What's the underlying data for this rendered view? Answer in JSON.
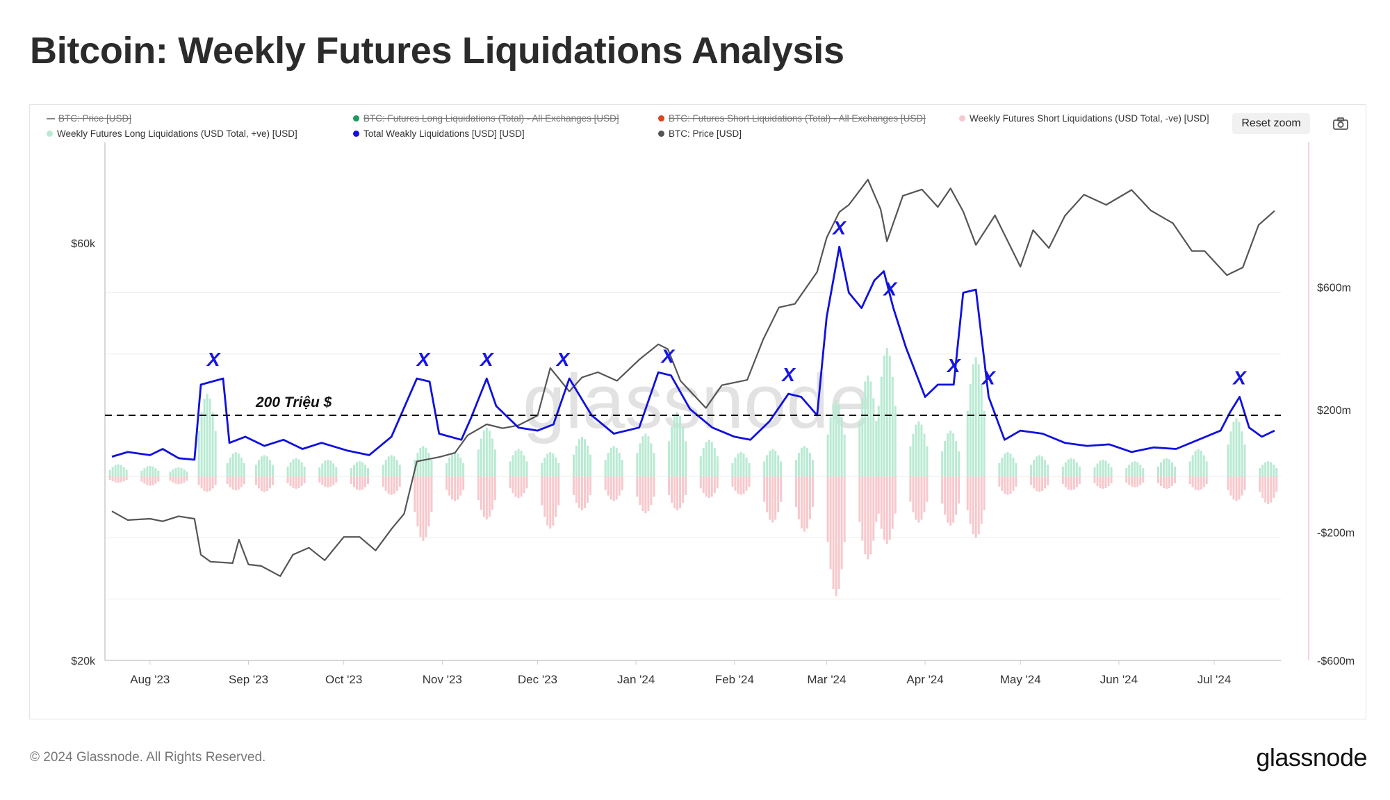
{
  "page": {
    "title": "Bitcoin: Weekly Futures Liquidations Analysis",
    "copyright": "© 2024 Glassnode. All Rights Reserved.",
    "brand": "glassnode",
    "watermark": "glassnode"
  },
  "controls": {
    "reset_zoom_label": "Reset zoom",
    "camera_icon": "camera-icon"
  },
  "legend": [
    {
      "label": "BTC: Price [USD]",
      "color": "#888888",
      "hidden": true,
      "marker": "line"
    },
    {
      "label": "BTC: Futures Long Liquidations (Total) - All Exchanges [USD]",
      "color": "#1a9c5a",
      "hidden": true,
      "marker": "dot"
    },
    {
      "label": "BTC: Futures Short Liquidations (Total) - All Exchanges [USD]",
      "color": "#e0441b",
      "hidden": true,
      "marker": "dot"
    },
    {
      "label": "Weekly Futures Short Liquidations (USD Total, -ve) [USD]",
      "color": "#f7c8cc",
      "hidden": false,
      "marker": "dot"
    },
    {
      "label": "Weekly Futures Long Liquidations (USD Total, +ve) [USD]",
      "color": "#b9ead3",
      "hidden": false,
      "marker": "dot"
    },
    {
      "label": "Total Weakly Liquidations [USD] [USD]",
      "color": "#1010e0",
      "hidden": false,
      "marker": "dot"
    },
    {
      "label": "BTC: Price [USD]",
      "color": "#555555",
      "hidden": false,
      "marker": "dot"
    }
  ],
  "chart_data": {
    "type": "line",
    "annotation_threshold": {
      "label": "200 Triệu $",
      "value": 200000000,
      "style": "dashed"
    },
    "peak_marker_label": "X",
    "x_axis": {
      "ticks": [
        "Aug '23",
        "Sep '23",
        "Oct '23",
        "Nov '23",
        "Dec '23",
        "Jan '24",
        "Feb '24",
        "Mar '24",
        "Apr '24",
        "May '24",
        "Jun '24",
        "Jul '24"
      ],
      "range": [
        "2023-07-20",
        "2024-07-22"
      ]
    },
    "left_axis": {
      "ticks": [
        "$60k",
        "$20k"
      ],
      "range": [
        20000,
        75000
      ],
      "scale": "log"
    },
    "right_axis": {
      "ticks": [
        "$600m",
        "$200m",
        "-$200m",
        "-$600m"
      ],
      "range": [
        -600000000,
        1000000000
      ]
    },
    "series": [
      {
        "name": "BTC: Price [USD]",
        "axis": "left",
        "color": "#555555",
        "points": [
          [
            "2023-07-20",
            29900
          ],
          [
            "2023-07-25",
            29200
          ],
          [
            "2023-08-01",
            29300
          ],
          [
            "2023-08-05",
            29100
          ],
          [
            "2023-08-10",
            29500
          ],
          [
            "2023-08-15",
            29300
          ],
          [
            "2023-08-17",
            26600
          ],
          [
            "2023-08-20",
            26100
          ],
          [
            "2023-08-27",
            26000
          ],
          [
            "2023-08-29",
            27700
          ],
          [
            "2023-09-01",
            25900
          ],
          [
            "2023-09-05",
            25800
          ],
          [
            "2023-09-11",
            25100
          ],
          [
            "2023-09-15",
            26600
          ],
          [
            "2023-09-20",
            27100
          ],
          [
            "2023-09-25",
            26200
          ],
          [
            "2023-10-01",
            27900
          ],
          [
            "2023-10-06",
            27900
          ],
          [
            "2023-10-11",
            26900
          ],
          [
            "2023-10-16",
            28500
          ],
          [
            "2023-10-20",
            29700
          ],
          [
            "2023-10-24",
            34200
          ],
          [
            "2023-10-31",
            34600
          ],
          [
            "2023-11-05",
            35000
          ],
          [
            "2023-11-09",
            36700
          ],
          [
            "2023-11-15",
            37800
          ],
          [
            "2023-11-20",
            37400
          ],
          [
            "2023-11-25",
            37700
          ],
          [
            "2023-12-01",
            38700
          ],
          [
            "2023-12-05",
            44000
          ],
          [
            "2023-12-11",
            41300
          ],
          [
            "2023-12-15",
            42900
          ],
          [
            "2023-12-20",
            43500
          ],
          [
            "2023-12-26",
            42500
          ],
          [
            "2024-01-02",
            45000
          ],
          [
            "2024-01-08",
            46900
          ],
          [
            "2024-01-11",
            46300
          ],
          [
            "2024-01-15",
            42500
          ],
          [
            "2024-01-23",
            39500
          ],
          [
            "2024-01-28",
            42000
          ],
          [
            "2024-02-05",
            42600
          ],
          [
            "2024-02-10",
            47500
          ],
          [
            "2024-02-15",
            51800
          ],
          [
            "2024-02-20",
            52300
          ],
          [
            "2024-02-27",
            57000
          ],
          [
            "2024-03-01",
            62500
          ],
          [
            "2024-03-05",
            67000
          ],
          [
            "2024-03-08",
            68300
          ],
          [
            "2024-03-14",
            73100
          ],
          [
            "2024-03-18",
            67500
          ],
          [
            "2024-03-20",
            61900
          ],
          [
            "2024-03-25",
            70000
          ],
          [
            "2024-03-31",
            71200
          ],
          [
            "2024-04-05",
            67900
          ],
          [
            "2024-04-09",
            71400
          ],
          [
            "2024-04-13",
            67100
          ],
          [
            "2024-04-17",
            61300
          ],
          [
            "2024-04-23",
            66400
          ],
          [
            "2024-05-01",
            57800
          ],
          [
            "2024-05-05",
            63800
          ],
          [
            "2024-05-10",
            60800
          ],
          [
            "2024-05-15",
            66300
          ],
          [
            "2024-05-21",
            70200
          ],
          [
            "2024-05-28",
            68300
          ],
          [
            "2024-06-05",
            71100
          ],
          [
            "2024-06-11",
            67300
          ],
          [
            "2024-06-18",
            65000
          ],
          [
            "2024-06-24",
            60300
          ],
          [
            "2024-06-28",
            60300
          ],
          [
            "2024-07-05",
            56500
          ],
          [
            "2024-07-10",
            57700
          ],
          [
            "2024-07-15",
            64700
          ],
          [
            "2024-07-20",
            67200
          ]
        ]
      },
      {
        "name": "Total Weakly Liquidations [USD] [USD]",
        "axis": "right",
        "color": "#1010e0",
        "points": [
          [
            "2023-07-20",
            65000000
          ],
          [
            "2023-07-25",
            80000000
          ],
          [
            "2023-08-01",
            70000000
          ],
          [
            "2023-08-05",
            90000000
          ],
          [
            "2023-08-10",
            60000000
          ],
          [
            "2023-08-15",
            55000000
          ],
          [
            "2023-08-17",
            300000000
          ],
          [
            "2023-08-24",
            320000000
          ],
          [
            "2023-08-26",
            110000000
          ],
          [
            "2023-08-31",
            130000000
          ],
          [
            "2023-09-06",
            100000000
          ],
          [
            "2023-09-12",
            120000000
          ],
          [
            "2023-09-18",
            90000000
          ],
          [
            "2023-09-24",
            110000000
          ],
          [
            "2023-10-02",
            85000000
          ],
          [
            "2023-10-09",
            70000000
          ],
          [
            "2023-10-16",
            130000000
          ],
          [
            "2023-10-24",
            320000000
          ],
          [
            "2023-10-28",
            310000000
          ],
          [
            "2023-10-31",
            140000000
          ],
          [
            "2023-11-07",
            120000000
          ],
          [
            "2023-11-10",
            190000000
          ],
          [
            "2023-11-15",
            320000000
          ],
          [
            "2023-11-18",
            230000000
          ],
          [
            "2023-11-25",
            160000000
          ],
          [
            "2023-12-01",
            150000000
          ],
          [
            "2023-12-06",
            170000000
          ],
          [
            "2023-12-11",
            320000000
          ],
          [
            "2023-12-18",
            200000000
          ],
          [
            "2023-12-25",
            140000000
          ],
          [
            "2024-01-02",
            160000000
          ],
          [
            "2024-01-08",
            340000000
          ],
          [
            "2024-01-12",
            330000000
          ],
          [
            "2024-01-18",
            220000000
          ],
          [
            "2024-01-25",
            160000000
          ],
          [
            "2024-02-01",
            130000000
          ],
          [
            "2024-02-06",
            120000000
          ],
          [
            "2024-02-12",
            180000000
          ],
          [
            "2024-02-18",
            270000000
          ],
          [
            "2024-02-22",
            260000000
          ],
          [
            "2024-02-27",
            200000000
          ],
          [
            "2024-03-01",
            520000000
          ],
          [
            "2024-03-05",
            750000000
          ],
          [
            "2024-03-08",
            600000000
          ],
          [
            "2024-03-12",
            550000000
          ],
          [
            "2024-03-16",
            640000000
          ],
          [
            "2024-03-19",
            670000000
          ],
          [
            "2024-03-22",
            550000000
          ],
          [
            "2024-03-26",
            420000000
          ],
          [
            "2024-04-01",
            260000000
          ],
          [
            "2024-04-05",
            300000000
          ],
          [
            "2024-04-10",
            300000000
          ],
          [
            "2024-04-13",
            600000000
          ],
          [
            "2024-04-17",
            610000000
          ],
          [
            "2024-04-21",
            260000000
          ],
          [
            "2024-04-26",
            120000000
          ],
          [
            "2024-05-01",
            150000000
          ],
          [
            "2024-05-08",
            140000000
          ],
          [
            "2024-05-15",
            110000000
          ],
          [
            "2024-05-22",
            100000000
          ],
          [
            "2024-05-29",
            105000000
          ],
          [
            "2024-06-05",
            80000000
          ],
          [
            "2024-06-12",
            95000000
          ],
          [
            "2024-06-19",
            90000000
          ],
          [
            "2024-06-26",
            120000000
          ],
          [
            "2024-07-03",
            150000000
          ],
          [
            "2024-07-06",
            210000000
          ],
          [
            "2024-07-09",
            260000000
          ],
          [
            "2024-07-12",
            160000000
          ],
          [
            "2024-07-16",
            130000000
          ],
          [
            "2024-07-20",
            150000000
          ]
        ]
      },
      {
        "name": "Weekly Futures Long Liquidations (USD Total, +ve) [USD]",
        "axis": "right",
        "color": "#b9ead3",
        "type": "bar",
        "points": [
          [
            "2023-07-22",
            40000000
          ],
          [
            "2023-08-01",
            35000000
          ],
          [
            "2023-08-10",
            30000000
          ],
          [
            "2023-08-19",
            270000000
          ],
          [
            "2023-08-28",
            80000000
          ],
          [
            "2023-09-06",
            70000000
          ],
          [
            "2023-09-16",
            60000000
          ],
          [
            "2023-09-26",
            55000000
          ],
          [
            "2023-10-06",
            50000000
          ],
          [
            "2023-10-16",
            70000000
          ],
          [
            "2023-10-26",
            100000000
          ],
          [
            "2023-11-05",
            80000000
          ],
          [
            "2023-11-15",
            160000000
          ],
          [
            "2023-11-25",
            90000000
          ],
          [
            "2023-12-05",
            80000000
          ],
          [
            "2023-12-15",
            130000000
          ],
          [
            "2023-12-25",
            100000000
          ],
          [
            "2024-01-04",
            140000000
          ],
          [
            "2024-01-14",
            210000000
          ],
          [
            "2024-01-24",
            120000000
          ],
          [
            "2024-02-03",
            80000000
          ],
          [
            "2024-02-13",
            90000000
          ],
          [
            "2024-02-23",
            100000000
          ],
          [
            "2024-03-04",
            250000000
          ],
          [
            "2024-03-14",
            330000000
          ],
          [
            "2024-03-20",
            420000000
          ],
          [
            "2024-03-30",
            180000000
          ],
          [
            "2024-04-09",
            150000000
          ],
          [
            "2024-04-17",
            390000000
          ],
          [
            "2024-04-27",
            80000000
          ],
          [
            "2024-05-07",
            70000000
          ],
          [
            "2024-05-17",
            60000000
          ],
          [
            "2024-05-27",
            55000000
          ],
          [
            "2024-06-06",
            50000000
          ],
          [
            "2024-06-16",
            60000000
          ],
          [
            "2024-06-26",
            90000000
          ],
          [
            "2024-07-08",
            190000000
          ],
          [
            "2024-07-18",
            50000000
          ]
        ]
      },
      {
        "name": "Weekly Futures Short Liquidations (USD Total, -ve) [USD]",
        "axis": "right",
        "color": "#f7c8cc",
        "type": "bar",
        "points": [
          [
            "2023-07-22",
            -20000000
          ],
          [
            "2023-08-01",
            -30000000
          ],
          [
            "2023-08-10",
            -25000000
          ],
          [
            "2023-08-19",
            -50000000
          ],
          [
            "2023-08-28",
            -45000000
          ],
          [
            "2023-09-06",
            -50000000
          ],
          [
            "2023-09-16",
            -40000000
          ],
          [
            "2023-09-26",
            -35000000
          ],
          [
            "2023-10-06",
            -45000000
          ],
          [
            "2023-10-16",
            -60000000
          ],
          [
            "2023-10-26",
            -210000000
          ],
          [
            "2023-11-05",
            -80000000
          ],
          [
            "2023-11-15",
            -140000000
          ],
          [
            "2023-11-25",
            -70000000
          ],
          [
            "2023-12-05",
            -170000000
          ],
          [
            "2023-12-15",
            -110000000
          ],
          [
            "2023-12-25",
            -80000000
          ],
          [
            "2024-01-04",
            -120000000
          ],
          [
            "2024-01-14",
            -110000000
          ],
          [
            "2024-01-24",
            -70000000
          ],
          [
            "2024-02-03",
            -60000000
          ],
          [
            "2024-02-13",
            -150000000
          ],
          [
            "2024-02-23",
            -180000000
          ],
          [
            "2024-03-04",
            -390000000
          ],
          [
            "2024-03-14",
            -270000000
          ],
          [
            "2024-03-20",
            -220000000
          ],
          [
            "2024-03-30",
            -150000000
          ],
          [
            "2024-04-09",
            -160000000
          ],
          [
            "2024-04-17",
            -200000000
          ],
          [
            "2024-04-27",
            -60000000
          ],
          [
            "2024-05-07",
            -50000000
          ],
          [
            "2024-05-17",
            -45000000
          ],
          [
            "2024-05-27",
            -40000000
          ],
          [
            "2024-06-06",
            -35000000
          ],
          [
            "2024-06-16",
            -40000000
          ],
          [
            "2024-06-26",
            -45000000
          ],
          [
            "2024-07-08",
            -80000000
          ],
          [
            "2024-07-18",
            -90000000
          ]
        ]
      }
    ],
    "peak_markers": [
      "2023-08-21",
      "2023-10-26",
      "2023-11-15",
      "2023-12-09",
      "2024-01-11",
      "2024-02-18",
      "2024-03-05",
      "2024-03-21",
      "2024-04-10",
      "2024-04-21",
      "2024-07-09"
    ]
  }
}
